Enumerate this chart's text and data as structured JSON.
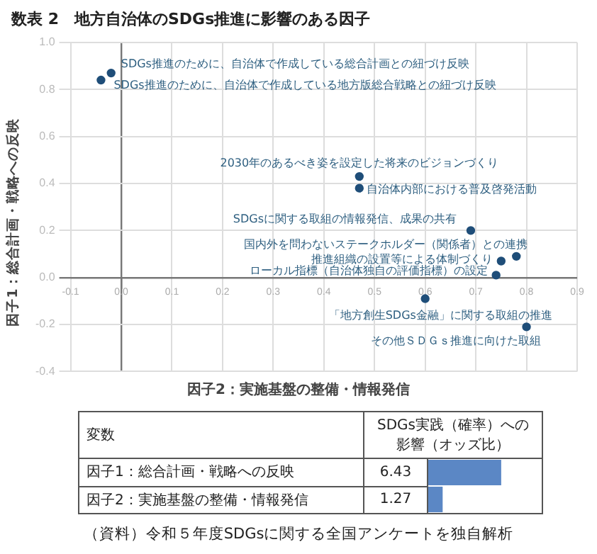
{
  "chart_data": [
    {
      "type": "scatter",
      "title": "数表 2　地方自治体のSDGs推進に影響のある因子",
      "xlabel": "因子2：実施基盤の整備・情報発信",
      "ylabel": "因子1：総合計画・戦略への反映",
      "x": [
        -0.02,
        -0.04,
        0.47,
        0.47,
        0.69,
        0.78,
        0.75,
        0.74,
        0.6,
        0.8
      ],
      "series": [
        {
          "color": "#1f4e79",
          "values": [
            0.87,
            0.84,
            0.43,
            0.38,
            0.2,
            0.09,
            0.07,
            0.01,
            -0.09,
            -0.21
          ]
        }
      ],
      "xlim": [
        -0.1,
        0.9
      ],
      "xticks": [
        -0.1,
        {
          "value": 0,
          "label": "0.0"
        },
        0.1,
        0.2,
        0.3,
        0.4,
        0.5,
        0.6,
        0.7,
        0.8,
        0.9
      ],
      "ylim": [
        -0.4,
        1.0
      ],
      "yticks": [
        -0.4,
        -0.2,
        {
          "value": 0,
          "label": "0.0"
        },
        0.2,
        0.4,
        0.6,
        0.8,
        {
          "value": 1,
          "label": "1.0"
        }
      ],
      "grid": true,
      "legend": false,
      "marker": "circle",
      "annotations": [
        {
          "text": "SDGs推進のために、自治体で作成している総合計画との紐づけ反映",
          "x": -0.02,
          "y": 0.87
        },
        {
          "text": "SDGs推進のために、自治体で作成している地方版総合戦略との紐づけ反映",
          "x": -0.04,
          "y": 0.84
        },
        {
          "text": "2030年のあるべき姿を設定した将来のビジョンづくり",
          "x": 0.47,
          "y": 0.43
        },
        {
          "text": "自治体内部における普及啓発活動",
          "x": 0.47,
          "y": 0.38
        },
        {
          "text": "SDGsに関する取組の情報発信、成果の共有",
          "x": 0.69,
          "y": 0.2
        },
        {
          "text": "国内外を問わないステークホルダー（関係者）との連携",
          "x": 0.78,
          "y": 0.09
        },
        {
          "text": "推進組織の設置等による体制づくり",
          "x": 0.75,
          "y": 0.07
        },
        {
          "text": "ローカル指標（自治体独自の評価指標）の設定",
          "x": 0.74,
          "y": 0.01
        },
        {
          "text": "「地方創生SDGs金融」に関する取組の推進",
          "x": 0.6,
          "y": -0.09
        },
        {
          "text": "その他ＳＤＧｓ推進に向けた取組",
          "x": 0.8,
          "y": -0.21
        }
      ]
    },
    {
      "type": "bar",
      "orientation": "horizontal",
      "ylabel": "変数",
      "xlabel": "SDGs実践（確率）への影響（オッズ比）",
      "categories": [
        "因子1：総合計画・戦略への反映",
        "因子2：実施基盤の整備・情報発信"
      ],
      "series": [
        {
          "color": "#5b87c5",
          "values": [
            6.43,
            1.27
          ]
        }
      ],
      "data_labels": true,
      "legend": false,
      "grid": false,
      "tick_labels": false,
      "annotations": [
        "（資料）令和５年度SDGsに関する全国アンケートを独自解析"
      ]
    }
  ]
}
